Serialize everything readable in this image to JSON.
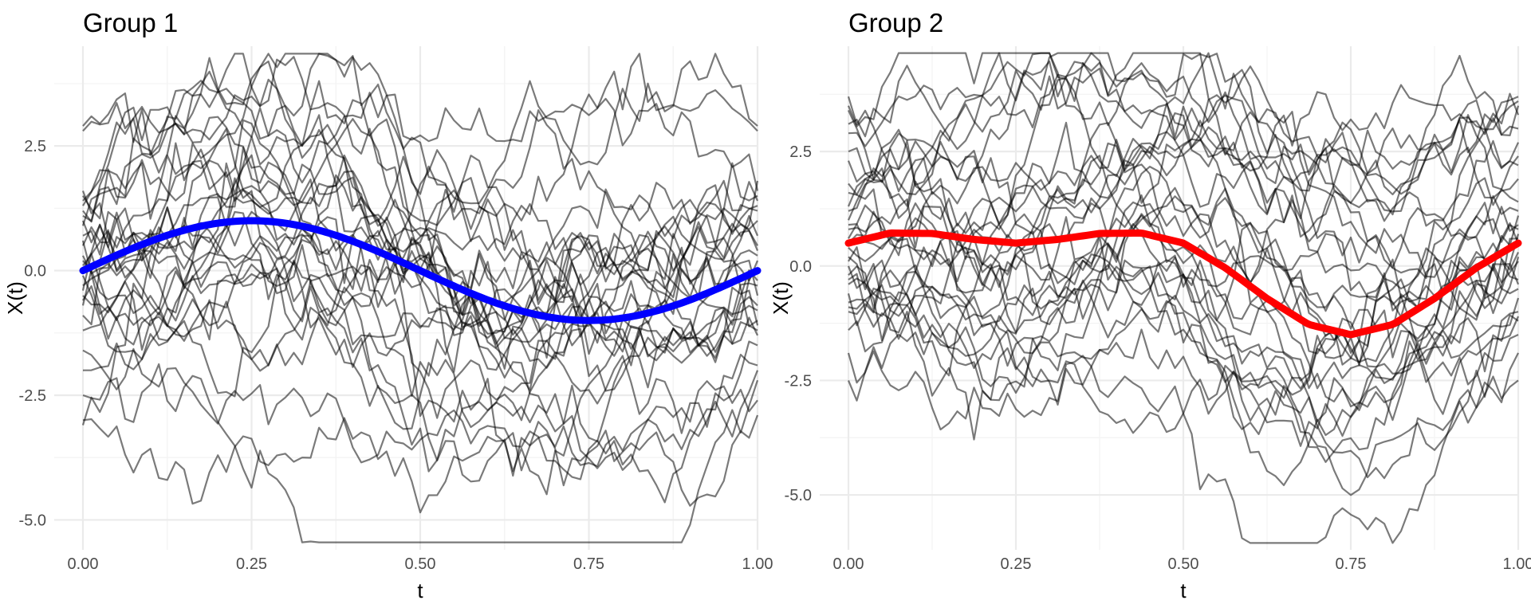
{
  "chart_data": [
    {
      "type": "line",
      "title": "Group 1",
      "xlabel": "t",
      "ylabel": "X(t)",
      "xlim": [
        0,
        1
      ],
      "ylim": [
        -5.6,
        4.5
      ],
      "x_ticks": [
        "0.00",
        "0.25",
        "0.50",
        "0.75",
        "1.00"
      ],
      "y_ticks": [
        "2.5",
        "0.0",
        "-2.5",
        "-5.0"
      ],
      "grid": true,
      "legend": "none",
      "mean_function": {
        "color": "#0000ff",
        "description": "sin(2πt)",
        "t": [
          0,
          0.125,
          0.25,
          0.375,
          0.5,
          0.625,
          0.75,
          0.875,
          1
        ],
        "values": [
          0,
          0.71,
          1.0,
          0.71,
          0,
          -0.71,
          -1.0,
          -0.71,
          0
        ]
      },
      "sample_curves": {
        "count": 30,
        "color": "#000000",
        "opacity": 0.5,
        "t_points": 80,
        "start_values": [
          2.8,
          2.9,
          1.5,
          1.3,
          1.2,
          1.1,
          0.9,
          0.7,
          0.5,
          0.3,
          0.1,
          -0.1,
          -0.3,
          -0.5,
          -0.7,
          -0.9,
          -1.6,
          -2.0,
          -3.1,
          -3.0,
          1.6,
          0.0,
          -0.4,
          0.6,
          1.0,
          -1.2,
          0.2,
          -0.6,
          1.4,
          -2.5
        ],
        "end_values": [
          2.8,
          2.9,
          1.8,
          1.4,
          1.3,
          0.7,
          0.5,
          0.2,
          0.0,
          -0.2,
          -0.5,
          -0.7,
          -1.0,
          -1.1,
          -1.3,
          -1.5,
          -1.9,
          -2.0,
          -2.6,
          -2.9,
          1.5,
          0.3,
          -0.3,
          1.0,
          1.2,
          -0.8,
          0.4,
          -1.2,
          1.6,
          -2.2
        ]
      }
    },
    {
      "type": "line",
      "title": "Group 2",
      "xlabel": "t",
      "ylabel": "X(t)",
      "xlim": [
        0,
        1
      ],
      "ylim": [
        -6.2,
        4.8
      ],
      "x_ticks": [
        "0.00",
        "0.25",
        "0.50",
        "0.75",
        "1.00"
      ],
      "y_ticks": [
        "2.5",
        "0.0",
        "-2.5",
        "-5.0"
      ],
      "grid": true,
      "legend": "none",
      "mean_function": {
        "color": "#ff0000",
        "t": [
          0,
          0.0625,
          0.125,
          0.1875,
          0.25,
          0.3125,
          0.375,
          0.4375,
          0.5,
          0.5625,
          0.625,
          0.6875,
          0.75,
          0.8125,
          0.875,
          0.9375,
          1
        ],
        "values": [
          0.5,
          0.72,
          0.71,
          0.58,
          0.5,
          0.58,
          0.71,
          0.72,
          0.5,
          -0.04,
          -0.71,
          -1.28,
          -1.5,
          -1.28,
          -0.71,
          -0.04,
          0.5
        ]
      },
      "sample_curves": {
        "count": 30,
        "color": "#000000",
        "opacity": 0.5,
        "t_points": 80,
        "start_values": [
          3.5,
          3.4,
          3.1,
          2.5,
          2.3,
          1.8,
          1.3,
          1.0,
          0.8,
          0.6,
          0.4,
          0.2,
          0.0,
          -0.2,
          -0.4,
          -0.6,
          -0.8,
          -1.0,
          -1.9,
          -2.5,
          3.7,
          1.6,
          0.5,
          -0.3,
          1.2,
          -1.4,
          0.9,
          0.1,
          2.9,
          -0.9
        ],
        "end_values": [
          3.7,
          3.5,
          3.3,
          3.0,
          2.4,
          1.9,
          1.2,
          1.1,
          0.9,
          0.7,
          0.5,
          0.3,
          0.1,
          -0.3,
          -0.5,
          -0.7,
          -1.0,
          -1.2,
          -1.9,
          -2.5,
          3.6,
          2.2,
          0.6,
          -0.4,
          1.4,
          -1.5,
          0.8,
          0.2,
          2.7,
          -1.1
        ]
      }
    }
  ]
}
